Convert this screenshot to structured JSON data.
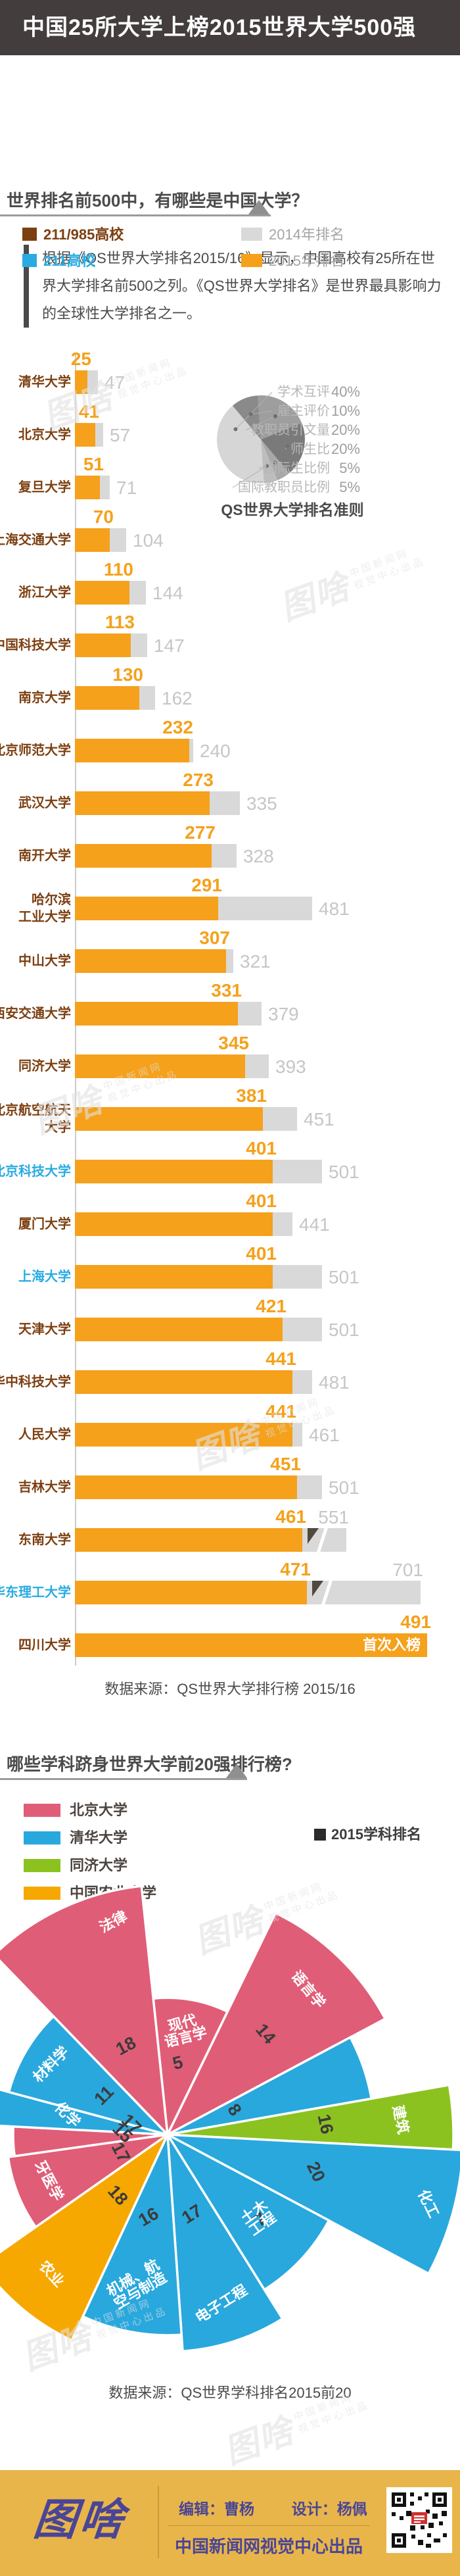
{
  "banner": {
    "title": "中国25所大学上榜2015世界大学500强"
  },
  "intro": {
    "text": "根据《QS世界大学排名2015/16》显示，中国高校有25所在世界大学排名前500之列。《QS世界大学排名》是世界最具影响力的全球性大学排名之一。"
  },
  "colors": {
    "banner_bg": "#443d3d",
    "rank_2015_orange": "#f5a11c",
    "rank_2014_gray": "#d9d9d9",
    "tier_985_brown": "#7c3f11",
    "tier_211_blue": "#29abe2",
    "peking_pink": "#e05d77",
    "tsinghua_blue": "#29a8dd",
    "tongji_green": "#8cc220",
    "cau_orange": "#f6a800",
    "footer_gold": "#e8b54b",
    "footer_purple": "#4a4596"
  },
  "section1": {
    "title": "世界排名前500中，有哪些是中国大学？",
    "tier_legend": [
      {
        "label": "211/985高校",
        "color": "#7c3f11"
      },
      {
        "label": "211高校",
        "color": "#29abe2"
      }
    ],
    "year_legend": [
      {
        "label": "2014年排名",
        "color": "#d9d9d9"
      },
      {
        "label": "2015年排名",
        "color": "#f5a11c"
      }
    ],
    "source": "数据来源：QS世界大学排行榜 2015/16"
  },
  "section2": {
    "title": "哪些学科跻身世界大学前20强排行榜?",
    "legend": [
      {
        "label": "北京大学",
        "color": "#e05d77"
      },
      {
        "label": "清华大学",
        "color": "#29a8dd"
      },
      {
        "label": "同济大学",
        "color": "#8cc220"
      },
      {
        "label": "中国农业大学",
        "color": "#f6a800"
      }
    ],
    "year_label": "2015学科排名",
    "source": "数据来源：QS世界学科排名2015前20"
  },
  "footer": {
    "logo": "图啥",
    "editor": "编辑：曹杨",
    "designer": "设计：杨佩",
    "producer": "中国新闻网视觉中心出品"
  },
  "watermark": {
    "logo": "图啥",
    "line1": "中国新闻网",
    "line2": "视觉中心出品"
  },
  "chart_data": [
    {
      "type": "bar",
      "title": "世界排名前500中，有哪些是中国大学？",
      "series": [
        "2015年排名",
        "2014年排名"
      ],
      "note_first_time": "首次入榜",
      "rows": [
        {
          "name": "清华大学",
          "tier": "985",
          "r2015": 25,
          "r2014": 47
        },
        {
          "name": "北京大学",
          "tier": "985",
          "r2015": 41,
          "r2014": 57
        },
        {
          "name": "复旦大学",
          "tier": "985",
          "r2015": 51,
          "r2014": 71
        },
        {
          "name": "上海交通大学",
          "tier": "985",
          "r2015": 70,
          "r2014": 104
        },
        {
          "name": "浙江大学",
          "tier": "985",
          "r2015": 110,
          "r2014": 144
        },
        {
          "name": "中国科技大学",
          "tier": "985",
          "r2015": 113,
          "r2014": 147
        },
        {
          "name": "南京大学",
          "tier": "985",
          "r2015": 130,
          "r2014": 162
        },
        {
          "name": "北京师范大学",
          "tier": "985",
          "r2015": 232,
          "r2014": 240
        },
        {
          "name": "武汉大学",
          "tier": "985",
          "r2015": 273,
          "r2014": 335
        },
        {
          "name": "南开大学",
          "tier": "985",
          "r2015": 277,
          "r2014": 328
        },
        {
          "name": "哈尔滨工业大学",
          "lines": [
            "哈尔滨",
            "工业大学"
          ],
          "tier": "985",
          "r2015": 291,
          "r2014": 481
        },
        {
          "name": "中山大学",
          "tier": "985",
          "r2015": 307,
          "r2014": 321
        },
        {
          "name": "西安交通大学",
          "tier": "985",
          "r2015": 331,
          "r2014": 379
        },
        {
          "name": "同济大学",
          "tier": "985",
          "r2015": 345,
          "r2014": 393
        },
        {
          "name": "北京航空航天大学",
          "lines": [
            "北京航空航天",
            "大学"
          ],
          "tier": "985",
          "r2015": 381,
          "r2014": 451
        },
        {
          "name": "北京科技大学",
          "tier": "211",
          "r2015": 401,
          "r2014": 501
        },
        {
          "name": "厦门大学",
          "tier": "985",
          "r2015": 401,
          "r2014": 441
        },
        {
          "name": "上海大学",
          "tier": "211",
          "r2015": 401,
          "r2014": 501
        },
        {
          "name": "天津大学",
          "tier": "985",
          "r2015": 421,
          "r2014": 501
        },
        {
          "name": "华中科技大学",
          "tier": "985",
          "r2015": 441,
          "r2014": 481
        },
        {
          "name": "人民大学",
          "tier": "985",
          "r2015": 441,
          "r2014": 461
        },
        {
          "name": "吉林大学",
          "tier": "985",
          "r2015": 451,
          "r2014": 501
        },
        {
          "name": "东南大学",
          "tier": "985",
          "r2015": 461,
          "r2014": 551,
          "broken": true
        },
        {
          "name": "华东理工大学",
          "tier": "211",
          "r2015": 471,
          "r2014": 701,
          "broken": true
        },
        {
          "name": "四川大学",
          "tier": "985",
          "r2015": 491,
          "r2014": null,
          "note": "首次入榜",
          "full_bar": true
        }
      ]
    },
    {
      "type": "pie",
      "title": "QS世界大学排名准则",
      "slices": [
        {
          "label": "学术互评",
          "pct": 40,
          "color": "#d6d6d6",
          "a0": 176,
          "a1": 320,
          "dotA": 292
        },
        {
          "label": "雇主评价",
          "pct": 10,
          "color": "#8a8a8a",
          "a0": -40,
          "a1": -4
        },
        {
          "label": "教职员引文量",
          "pct": 20,
          "color": "#9e9e9e",
          "a0": -4,
          "a1": 68
        },
        {
          "label": "师生比",
          "pct": 20,
          "color": "#7a7a7a",
          "a0": 68,
          "a1": 140
        },
        {
          "label": "国际生比例",
          "pct": 5,
          "color": "#a8a8a8",
          "a0": 140,
          "a1": 158
        },
        {
          "label": "国际教职员比例",
          "pct": 5,
          "color": "#bdbdbd",
          "a0": 158,
          "a1": 176
        }
      ]
    },
    {
      "type": "rose",
      "title": "哪些学科跻身世界大学前20强排行榜?",
      "legend_note": "2015学科排名",
      "sectors": [
        {
          "subject": "法律",
          "university": "北京大学",
          "rank": 18,
          "color": "#e05d77",
          "a0": -44,
          "a1": -6,
          "r": 380,
          "rot": -28,
          "labelA": -14,
          "labelR": 0.86,
          "numR": 140,
          "lines": [
            "法律"
          ]
        },
        {
          "subject": "现代语言学",
          "university": "北京大学",
          "rank": 5,
          "color": "#e05d77",
          "a0": -6,
          "a1": 26,
          "r": 208,
          "rot": -14,
          "labelR": 0.74,
          "numR": 102,
          "lines": [
            "现代",
            "语言学"
          ]
        },
        {
          "subject": "语言学",
          "university": "北京大学",
          "rank": 14,
          "color": "#e05d77",
          "a0": 26,
          "a1": 62,
          "r": 375,
          "rot": 50,
          "labelR": 0.8,
          "numR": 205,
          "lines": [
            "语言学"
          ]
        },
        {
          "subject": "建筑",
          "university": "清华大学",
          "rank": 8,
          "color": "#29a8dd",
          "a0": 62,
          "a1": 80,
          "r": 315,
          "rot": 55,
          "labelR": 0,
          "numR": 100,
          "lines": []
        },
        {
          "subject": "建筑",
          "university": "同济大学",
          "rank": 16,
          "color": "#8cc220",
          "a0": 80,
          "a1": 93,
          "r": 435,
          "rot": 78,
          "labelR": 0.8,
          "numR": 232,
          "lines": [
            "建筑"
          ]
        },
        {
          "subject": "化工",
          "university": "清华大学",
          "rank": 20,
          "color": "#29a8dd",
          "a0": 93,
          "a1": 118,
          "r": 450,
          "rot": 64,
          "labelR": 0.9,
          "numR": 226,
          "lines": [
            "化工"
          ]
        },
        {
          "subject": "土木工程",
          "university": "清华大学",
          "rank": 7,
          "color": "#29a8dd",
          "a0": 118,
          "a1": 148,
          "r": 278,
          "rot": -35,
          "labelR": 0.7,
          "numR": 200,
          "lines": [
            "土木",
            "工程"
          ]
        },
        {
          "subject": "电子工程",
          "university": "清华大学",
          "rank": 17,
          "color": "#29a8dd",
          "a0": 148,
          "a1": 176,
          "r": 330,
          "rot": -32,
          "labelR": 0.84,
          "numR": 135,
          "lines": [
            "电子工程"
          ]
        },
        {
          "subject": "机械、航空与制造",
          "university": "清华大学",
          "rank": 16,
          "color": "#29a8dd",
          "a0": 176,
          "a1": 205,
          "r": 305,
          "rot": -30,
          "labelR": 0.78,
          "numR": 135,
          "lines": [
            "机械、航",
            "空与制造"
          ]
        },
        {
          "subject": "农业",
          "university": "中国农业大学",
          "rank": 18,
          "color": "#f6a800",
          "a0": 205,
          "a1": 235,
          "r": 345,
          "rot": 48,
          "labelR": 0.82,
          "numR": 128,
          "lines": [
            "农业"
          ]
        },
        {
          "subject": "牙医学",
          "university": "北京大学",
          "rank": 17,
          "color": "#e05d77",
          "a0": 235,
          "a1": 262,
          "r": 245,
          "rot": 62,
          "labelR": 0.82,
          "numR": 85,
          "lines": [
            "牙医学"
          ]
        },
        {
          "subject": "化学",
          "university": "北京大学",
          "rank": 15,
          "color": "#e05d77",
          "a0": 262,
          "a1": 273,
          "r": 235,
          "rot": 45,
          "labelR": 0,
          "numR": 75,
          "lines": []
        },
        {
          "subject": "化学",
          "university": "清华大学",
          "rank": 17,
          "color": "#29a8dd",
          "a0": 273,
          "a1": 285,
          "r": 285,
          "rot": 45,
          "labelR": 0.56,
          "numR": 62,
          "lines": [
            "化学"
          ]
        },
        {
          "subject": "材料学",
          "university": "清华大学",
          "rank": 11,
          "color": "#29a8dd",
          "a0": 285,
          "a1": 316,
          "r": 250,
          "rot": -45,
          "labelR": 0.8,
          "numR": 105,
          "lines": [
            "材料学"
          ]
        }
      ]
    }
  ]
}
